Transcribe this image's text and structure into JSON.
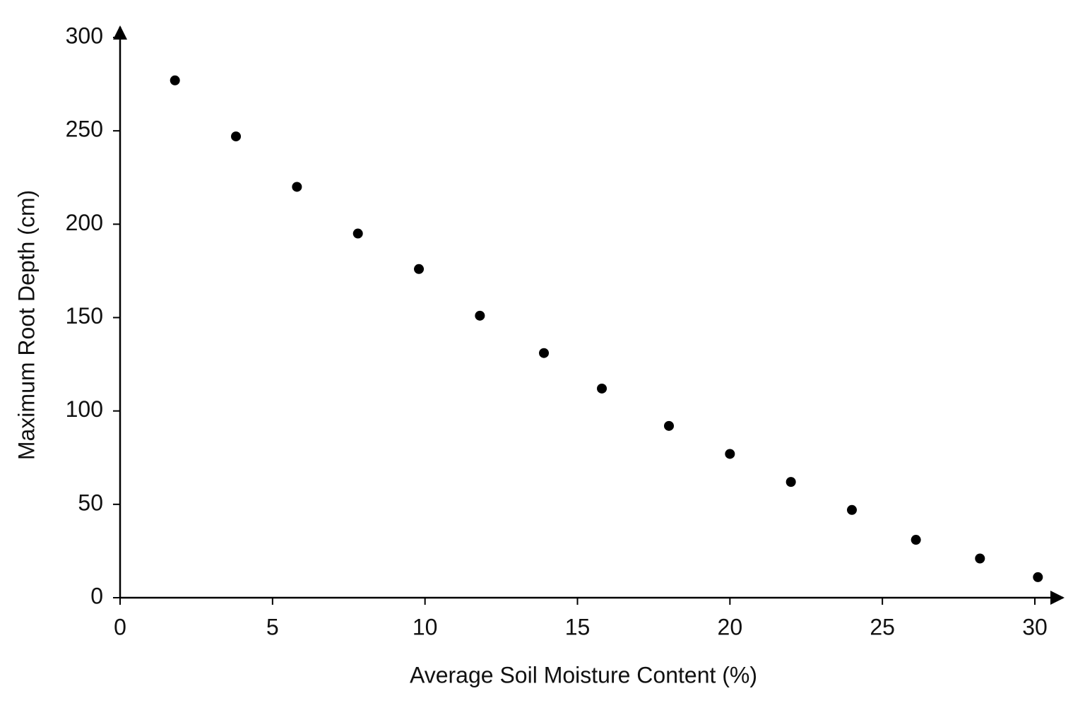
{
  "chart_data": {
    "type": "scatter",
    "x_label": "Average Soil Moisture Content (%)",
    "y_label": "Maximum Root Depth (cm)",
    "x": [
      1.8,
      3.8,
      5.8,
      7.8,
      9.8,
      11.8,
      13.9,
      15.8,
      18,
      20,
      22,
      24,
      26.1,
      28.2,
      30.1
    ],
    "values": [
      277,
      247,
      220,
      195,
      176,
      151,
      131,
      112,
      92,
      77,
      62,
      47,
      31,
      21,
      11
    ],
    "color": "#000000",
    "xlim": [
      0,
      30.8
    ],
    "ylim": [
      0,
      305
    ],
    "xticks": [
      0,
      5,
      10,
      15,
      20,
      25,
      30
    ],
    "yticks": [
      0,
      50,
      100,
      150,
      200,
      250,
      300
    ],
    "grid": false
  }
}
